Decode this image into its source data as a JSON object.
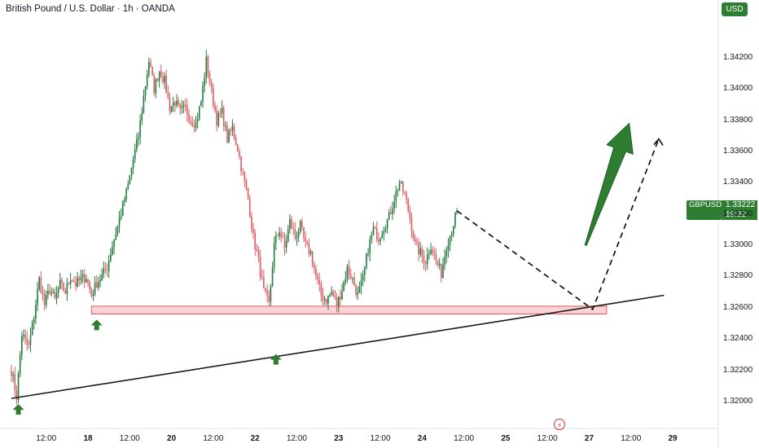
{
  "header": {
    "title": "British Pound / U.S. Dollar · 1h · OANDA"
  },
  "currency_button": "USD",
  "price_label": {
    "symbol": "GBPUSD",
    "price": "1.33222",
    "countdown": "19:32"
  },
  "event_icon": "lightning-icon",
  "colors": {
    "up": "#26a69a",
    "up_fill": "#1f7a3c",
    "down": "#e05a63",
    "zone_fill": "#fbd3d6",
    "zone_stroke": "#e05a63",
    "trendline": "#1a1a1a",
    "arrow": "#2e7d32",
    "axis_text": "#131722"
  },
  "chart_data": {
    "type": "candlestick",
    "title": "British Pound / U.S. Dollar · 1h · OANDA",
    "symbol": "GBPUSD",
    "y_ticks": [
      "1.32000",
      "1.32200",
      "1.32400",
      "1.32600",
      "1.32800",
      "1.33000",
      "1.33200",
      "1.33400",
      "1.33600",
      "1.33800",
      "1.34000",
      "1.34200"
    ],
    "ylim": [
      1.3188,
      1.3435
    ],
    "x_ticks": [
      {
        "label": "12:00",
        "bar": 20,
        "bold": false
      },
      {
        "label": "18",
        "bar": 44,
        "bold": true
      },
      {
        "label": "12:00",
        "bar": 68,
        "bold": false
      },
      {
        "label": "20",
        "bar": 92,
        "bold": true
      },
      {
        "label": "12:00",
        "bar": 116,
        "bold": false
      },
      {
        "label": "22",
        "bar": 140,
        "bold": true
      },
      {
        "label": "12:00",
        "bar": 164,
        "bold": false
      },
      {
        "label": "23",
        "bar": 188,
        "bold": true
      },
      {
        "label": "12:00",
        "bar": 212,
        "bold": false
      },
      {
        "label": "24",
        "bar": 236,
        "bold": true
      },
      {
        "label": "12:00",
        "bar": 260,
        "bold": false
      },
      {
        "label": "25",
        "bar": 284,
        "bold": true
      },
      {
        "label": "12:00",
        "bar": 308,
        "bold": false
      },
      {
        "label": "27",
        "bar": 332,
        "bold": true
      },
      {
        "label": "12:00",
        "bar": 356,
        "bold": false
      },
      {
        "label": "29",
        "bar": 380,
        "bold": true
      }
    ],
    "anchors": [
      [
        0,
        1.322
      ],
      [
        3,
        1.3203
      ],
      [
        6,
        1.3243
      ],
      [
        10,
        1.3235
      ],
      [
        13,
        1.3255
      ],
      [
        16,
        1.3278
      ],
      [
        19,
        1.3262
      ],
      [
        22,
        1.3272
      ],
      [
        25,
        1.3265
      ],
      [
        28,
        1.3275
      ],
      [
        31,
        1.327
      ],
      [
        34,
        1.328
      ],
      [
        37,
        1.3275
      ],
      [
        40,
        1.3278
      ],
      [
        43,
        1.328
      ],
      [
        46,
        1.3268
      ],
      [
        49,
        1.3276
      ],
      [
        52,
        1.328
      ],
      [
        55,
        1.3286
      ],
      [
        58,
        1.33
      ],
      [
        61,
        1.3312
      ],
      [
        64,
        1.3325
      ],
      [
        67,
        1.3338
      ],
      [
        70,
        1.3355
      ],
      [
        73,
        1.337
      ],
      [
        76,
        1.3395
      ],
      [
        79,
        1.3418
      ],
      [
        82,
        1.34
      ],
      [
        85,
        1.3412
      ],
      [
        88,
        1.3405
      ],
      [
        91,
        1.3388
      ],
      [
        94,
        1.3392
      ],
      [
        97,
        1.3385
      ],
      [
        100,
        1.3388
      ],
      [
        103,
        1.338
      ],
      [
        106,
        1.3378
      ],
      [
        109,
        1.3392
      ],
      [
        112,
        1.3418
      ],
      [
        115,
        1.3398
      ],
      [
        118,
        1.338
      ],
      [
        121,
        1.3385
      ],
      [
        124,
        1.3368
      ],
      [
        127,
        1.3375
      ],
      [
        130,
        1.3362
      ],
      [
        133,
        1.3345
      ],
      [
        136,
        1.333
      ],
      [
        139,
        1.3305
      ],
      [
        142,
        1.329
      ],
      [
        145,
        1.327
      ],
      [
        148,
        1.3262
      ],
      [
        151,
        1.33
      ],
      [
        154,
        1.331
      ],
      [
        157,
        1.3298
      ],
      [
        160,
        1.3315
      ],
      [
        163,
        1.3305
      ],
      [
        166,
        1.3312
      ],
      [
        169,
        1.33
      ],
      [
        172,
        1.3295
      ],
      [
        175,
        1.328
      ],
      [
        178,
        1.3268
      ],
      [
        181,
        1.3265
      ],
      [
        184,
        1.327
      ],
      [
        187,
        1.3262
      ],
      [
        190,
        1.3272
      ],
      [
        193,
        1.3285
      ],
      [
        196,
        1.3278
      ],
      [
        199,
        1.3268
      ],
      [
        202,
        1.3278
      ],
      [
        205,
        1.3298
      ],
      [
        208,
        1.331
      ],
      [
        211,
        1.3305
      ],
      [
        214,
        1.3312
      ],
      [
        217,
        1.3318
      ],
      [
        220,
        1.333
      ],
      [
        223,
        1.334
      ],
      [
        226,
        1.3332
      ],
      [
        229,
        1.3318
      ],
      [
        232,
        1.33
      ],
      [
        235,
        1.3295
      ],
      [
        238,
        1.329
      ],
      [
        241,
        1.33
      ],
      [
        244,
        1.329
      ],
      [
        247,
        1.3282
      ],
      [
        250,
        1.33
      ],
      [
        253,
        1.331
      ],
      [
        256,
        1.3322
      ]
    ],
    "seed": 7,
    "support_zone": {
      "from_bar": 46,
      "to_bar": 342,
      "price_top": 1.3261,
      "price_bottom": 1.3256
    },
    "trendline": {
      "points": [
        [
          0,
          1.3202
        ],
        [
          375,
          1.3268
        ]
      ]
    },
    "projection": {
      "points": [
        [
          256,
          1.3322
        ],
        [
          334,
          1.3259
        ],
        [
          372,
          1.3368
        ]
      ]
    },
    "support_arrows": [
      {
        "bar": 4,
        "price": 1.32
      },
      {
        "bar": 49,
        "price": 1.3254
      },
      {
        "bar": 152,
        "price": 1.3232
      }
    ],
    "big_arrow": {
      "from": [
        330,
        1.33
      ],
      "to": [
        355,
        1.3378
      ]
    }
  }
}
